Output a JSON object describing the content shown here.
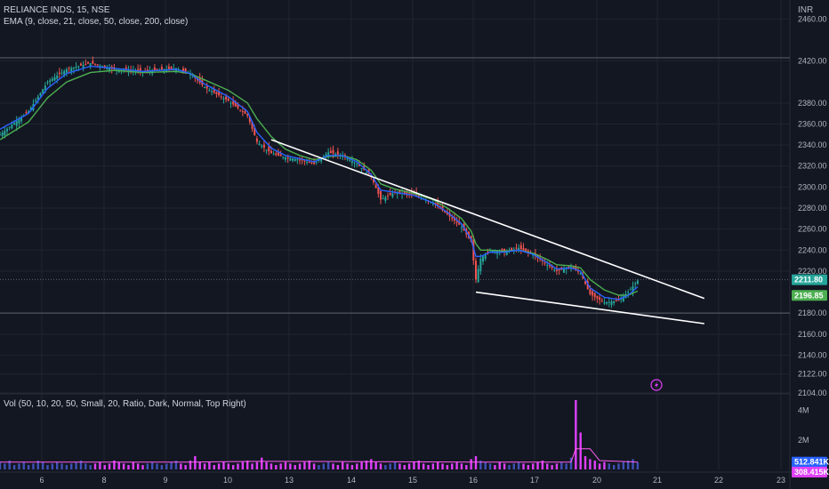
{
  "legend": {
    "symbol": "RELIANCE INDS, 15, NSE",
    "ema": "EMA (9, close, 21, close, 50, close, 200, close)",
    "vol": "Vol (50, 10, 20, 50, Small, 20, Ratio, Dark, Normal, Top Right)",
    "currency": "INR"
  },
  "colors": {
    "background": "#131722",
    "grid": "#1f2430",
    "up": "#26a69a",
    "down": "#ef5350",
    "ema_fast": "#2962ff",
    "ema_slow": "#4caf50",
    "trendline": "#ffffff",
    "vol_up": "#3f51b5",
    "vol_down": "#e040fb",
    "vol_ma": "#ff5cf4"
  },
  "chart_data": {
    "type": "candlestick",
    "x_ticks": [
      "6",
      "8",
      "9",
      "10",
      "13",
      "14",
      "15",
      "16",
      "17",
      "20",
      "21",
      "22",
      "23"
    ],
    "y_ticks": [
      "2460.00",
      "2420.00",
      "2380.00",
      "2360.00",
      "2340.00",
      "2320.00",
      "2300.00",
      "2280.00",
      "2260.00",
      "2240.00",
      "2220.00",
      "2180.00",
      "2160.00",
      "2140.00",
      "2122.00",
      "2104.00"
    ],
    "y_tick_values": [
      2460,
      2420,
      2380,
      2360,
      2340,
      2320,
      2300,
      2280,
      2260,
      2240,
      2220,
      2180,
      2160,
      2140,
      2122,
      2104
    ],
    "ylim": [
      2104,
      2478
    ],
    "price_path": [
      [
        0,
        2350
      ],
      [
        6,
        2372
      ],
      [
        10,
        2400
      ],
      [
        14,
        2412
      ],
      [
        19,
        2418
      ],
      [
        24,
        2412
      ],
      [
        30,
        2410
      ],
      [
        37,
        2413
      ],
      [
        40,
        2408
      ],
      [
        43,
        2395
      ],
      [
        48,
        2382
      ],
      [
        52,
        2368
      ],
      [
        54,
        2343
      ],
      [
        57,
        2332
      ],
      [
        60,
        2328
      ],
      [
        63,
        2326
      ],
      [
        66,
        2322
      ],
      [
        69,
        2333
      ],
      [
        72,
        2330
      ],
      [
        75,
        2322
      ],
      [
        78,
        2310
      ],
      [
        80,
        2288
      ],
      [
        83,
        2295
      ],
      [
        87,
        2293
      ],
      [
        91,
        2285
      ],
      [
        94,
        2274
      ],
      [
        97,
        2262
      ],
      [
        99,
        2248
      ],
      [
        100,
        2212
      ],
      [
        101,
        2232
      ],
      [
        103,
        2240
      ],
      [
        106,
        2238
      ],
      [
        109,
        2242
      ],
      [
        112,
        2236
      ],
      [
        115,
        2226
      ],
      [
        117,
        2220
      ],
      [
        120,
        2224
      ],
      [
        122,
        2218
      ],
      [
        124,
        2198
      ],
      [
        127,
        2190
      ],
      [
        130,
        2192
      ],
      [
        132,
        2200
      ],
      [
        134,
        2211
      ]
    ],
    "ema_fast_path": [
      [
        0,
        2355
      ],
      [
        6,
        2370
      ],
      [
        10,
        2394
      ],
      [
        14,
        2408
      ],
      [
        19,
        2415
      ],
      [
        24,
        2413
      ],
      [
        30,
        2410
      ],
      [
        37,
        2412
      ],
      [
        40,
        2408
      ],
      [
        43,
        2398
      ],
      [
        48,
        2386
      ],
      [
        52,
        2372
      ],
      [
        54,
        2352
      ],
      [
        57,
        2337
      ],
      [
        60,
        2330
      ],
      [
        63,
        2327
      ],
      [
        66,
        2324
      ],
      [
        69,
        2330
      ],
      [
        72,
        2330
      ],
      [
        75,
        2324
      ],
      [
        78,
        2312
      ],
      [
        80,
        2297
      ],
      [
        83,
        2295
      ],
      [
        87,
        2292
      ],
      [
        91,
        2285
      ],
      [
        94,
        2276
      ],
      [
        97,
        2265
      ],
      [
        99,
        2250
      ],
      [
        100,
        2234
      ],
      [
        101,
        2234
      ],
      [
        103,
        2238
      ],
      [
        106,
        2238
      ],
      [
        109,
        2240
      ],
      [
        112,
        2236
      ],
      [
        115,
        2228
      ],
      [
        117,
        2222
      ],
      [
        120,
        2223
      ],
      [
        122,
        2220
      ],
      [
        124,
        2204
      ],
      [
        127,
        2195
      ],
      [
        130,
        2193
      ],
      [
        132,
        2197
      ],
      [
        134,
        2205
      ]
    ],
    "ema_slow_path": [
      [
        0,
        2345
      ],
      [
        6,
        2362
      ],
      [
        10,
        2385
      ],
      [
        14,
        2400
      ],
      [
        19,
        2409
      ],
      [
        24,
        2411
      ],
      [
        30,
        2409
      ],
      [
        37,
        2410
      ],
      [
        40,
        2408
      ],
      [
        43,
        2402
      ],
      [
        48,
        2392
      ],
      [
        52,
        2380
      ],
      [
        54,
        2365
      ],
      [
        57,
        2348
      ],
      [
        60,
        2336
      ],
      [
        63,
        2330
      ],
      [
        66,
        2326
      ],
      [
        69,
        2329
      ],
      [
        72,
        2330
      ],
      [
        75,
        2326
      ],
      [
        78,
        2316
      ],
      [
        80,
        2303
      ],
      [
        83,
        2298
      ],
      [
        87,
        2294
      ],
      [
        91,
        2288
      ],
      [
        94,
        2280
      ],
      [
        97,
        2270
      ],
      [
        99,
        2258
      ],
      [
        100,
        2246
      ],
      [
        101,
        2240
      ],
      [
        103,
        2240
      ],
      [
        106,
        2239
      ],
      [
        109,
        2240
      ],
      [
        112,
        2237
      ],
      [
        115,
        2231
      ],
      [
        117,
        2226
      ],
      [
        120,
        2225
      ],
      [
        122,
        2223
      ],
      [
        124,
        2212
      ],
      [
        127,
        2202
      ],
      [
        130,
        2197
      ],
      [
        132,
        2197
      ],
      [
        134,
        2201
      ]
    ],
    "trendline_upper": [
      [
        57,
        2345
      ],
      [
        148,
        2194
      ]
    ],
    "trendline_lower": [
      [
        100,
        2200
      ],
      [
        148,
        2170
      ]
    ],
    "horizontal_levels": [
      2423,
      2212,
      2180
    ],
    "last_price": "2211.80",
    "last_price_value": 2211.8,
    "ema_price": "2196.85",
    "ema_price_value": 2196.85,
    "volume": {
      "y_ticks": [
        "4M",
        "2M"
      ],
      "y_tick_values": [
        4,
        2
      ],
      "ylim_millions": [
        0,
        5
      ],
      "values_millions": [
        0.5,
        0.4,
        0.6,
        0.3,
        0.4,
        0.5,
        0.3,
        0.4,
        0.6,
        0.5,
        0.3,
        0.4,
        0.5,
        0.4,
        0.3,
        0.4,
        0.5,
        0.6,
        0.4,
        0.3,
        0.4,
        0.5,
        0.3,
        0.4,
        0.6,
        0.5,
        0.4,
        0.3,
        0.5,
        0.4,
        0.3,
        0.4,
        0.5,
        0.4,
        0.3,
        0.4,
        0.5,
        0.6,
        0.4,
        0.3,
        0.6,
        0.9,
        0.5,
        0.4,
        0.5,
        0.3,
        0.4,
        0.5,
        0.4,
        0.3,
        0.4,
        0.5,
        0.6,
        0.4,
        0.5,
        0.8,
        0.5,
        0.4,
        0.3,
        0.4,
        0.5,
        0.4,
        0.3,
        0.4,
        0.5,
        0.6,
        0.4,
        0.3,
        0.4,
        0.5,
        0.4,
        0.3,
        0.5,
        0.4,
        0.3,
        0.4,
        0.5,
        0.6,
        0.7,
        0.5,
        0.4,
        0.3,
        0.4,
        0.5,
        0.4,
        0.3,
        0.4,
        0.5,
        0.6,
        0.4,
        0.3,
        0.4,
        0.5,
        0.4,
        0.3,
        0.4,
        0.5,
        0.4,
        0.3,
        0.7,
        0.9,
        0.6,
        0.5,
        0.4,
        0.3,
        0.5,
        0.4,
        0.3,
        0.4,
        0.5,
        0.4,
        0.3,
        0.4,
        0.5,
        0.6,
        0.4,
        0.3,
        0.4,
        0.5,
        0.4,
        0.8,
        4.7,
        2.5,
        0.9,
        0.7,
        0.6,
        0.4,
        0.5,
        0.4,
        0.3,
        0.4,
        0.5,
        0.6,
        0.7,
        0.5
      ],
      "ma_path": [
        [
          0,
          0.5
        ],
        [
          40,
          0.5
        ],
        [
          55,
          0.55
        ],
        [
          100,
          0.5
        ],
        [
          120,
          0.5
        ],
        [
          121,
          1.4
        ],
        [
          124,
          1.4
        ],
        [
          126,
          0.6
        ],
        [
          134,
          0.5
        ]
      ],
      "last_volume": "512.841K",
      "last_volume_ma": "308.415K"
    }
  }
}
